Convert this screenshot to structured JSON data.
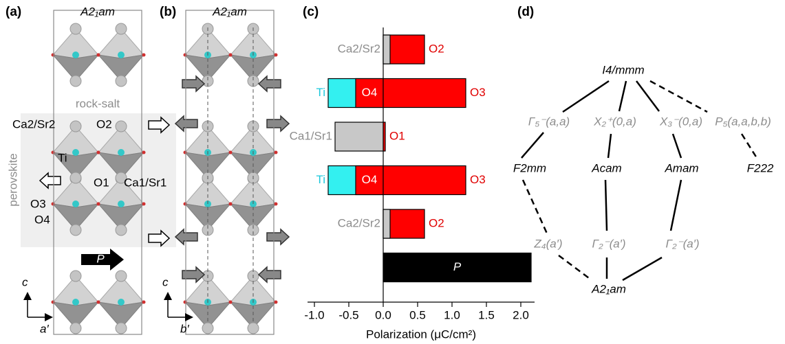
{
  "panel_a": {
    "label": "(a)",
    "space_group": "A2₁am",
    "rock_salt": "rock-salt",
    "perovskite": "perovskite",
    "atoms": [
      "Ca2/Sr2",
      "O2",
      "Ti",
      "O1",
      "Ca1/Sr1",
      "O3",
      "O4"
    ],
    "polarization": "P",
    "axis_c": "c",
    "axis_a": "a′"
  },
  "panel_b": {
    "label": "(b)",
    "space_group": "A2₁am",
    "axis_c": "c",
    "axis_b": "b′"
  },
  "chart_data": {
    "type": "bar",
    "panel_label": "(c)",
    "xlabel": "Polarization (μC/cm²)",
    "xlim": [
      -1.1,
      2.2
    ],
    "xticks": [
      {
        "value": -1,
        "label": "-1.0"
      },
      {
        "value": -0.5,
        "label": "-0.5"
      },
      {
        "value": 0,
        "label": "0.0"
      },
      {
        "value": 0.5,
        "label": "0.5"
      },
      {
        "value": 1,
        "label": "1.0"
      },
      {
        "value": 1.5,
        "label": "1.5"
      },
      {
        "value": 2,
        "label": "2.0"
      }
    ],
    "rows": [
      {
        "segments": [
          {
            "name": "O2",
            "value": 0.6,
            "color": "#ff0000",
            "label_color": "#e00000"
          },
          {
            "name": "Ca2/Sr2",
            "value": 0.1,
            "color": "#c8c8c8",
            "label_color": "#8c8c8c"
          }
        ]
      },
      {
        "segments": [
          {
            "name": "Ti",
            "value": -0.8,
            "color": "#33f0f0",
            "label_color": "#1cc8dc"
          },
          {
            "name": "O4",
            "value": -0.4,
            "color": "#ff0000",
            "label_color": "#e00000"
          },
          {
            "name": "O3",
            "value": 1.2,
            "color": "#ff0000",
            "label_color": "#e00000"
          }
        ]
      },
      {
        "segments": [
          {
            "name": "Ca1/Sr1",
            "value": -0.7,
            "color": "#c8c8c8",
            "label_color": "#8c8c8c"
          },
          {
            "name": "O1",
            "value": 0.03,
            "color": "#ff0000",
            "label_color": "#e00000"
          }
        ]
      },
      {
        "segments": [
          {
            "name": "Ti",
            "value": -0.8,
            "color": "#33f0f0",
            "label_color": "#1cc8dc"
          },
          {
            "name": "O4",
            "value": -0.4,
            "color": "#ff0000",
            "label_color": "#e00000"
          },
          {
            "name": "O3",
            "value": 1.2,
            "color": "#ff0000",
            "label_color": "#e00000"
          }
        ]
      },
      {
        "segments": [
          {
            "name": "O2",
            "value": 0.6,
            "color": "#ff0000",
            "label_color": "#e00000"
          },
          {
            "name": "Ca2/Sr2",
            "value": 0.1,
            "color": "#c8c8c8",
            "label_color": "#8c8c8c"
          }
        ]
      },
      {
        "segments": [
          {
            "name": "P",
            "value": 2.15,
            "color": "#000000",
            "label_color": "#ffffff"
          }
        ]
      }
    ]
  },
  "panel_d": {
    "label": "(d)",
    "nodes": [
      "I4/mmm",
      "F2mm",
      "Acam",
      "Amam",
      "F222",
      "A2₁am"
    ],
    "irreps": [
      "Γ₅⁻(a,a)",
      "X₂⁺(0,a)",
      "X₃⁻(0,a)",
      "P₅(a,a,b,b)",
      "Z₄(a′)",
      "Γ₂⁻(a′)",
      "Γ₂⁻(a′)"
    ]
  }
}
